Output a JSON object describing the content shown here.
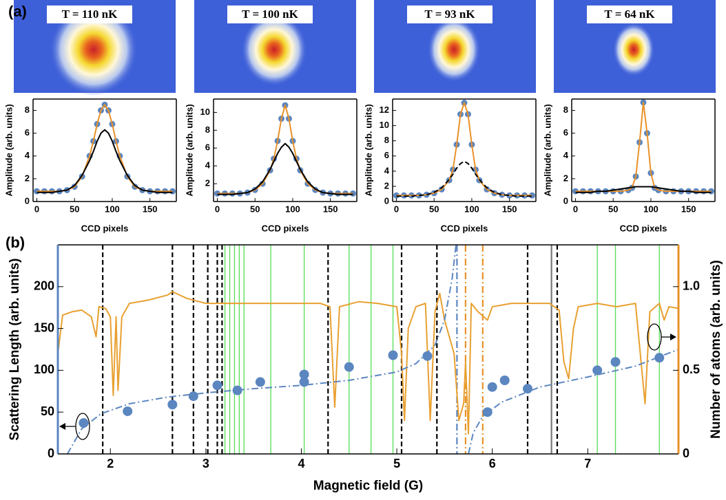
{
  "chart_data": [
    {
      "type": "line",
      "panel_label": "(a)",
      "annotation": "T = 110 nK",
      "x_label": "CCD pixels",
      "y_label": "Amplitude (arb. units)",
      "xlim": [
        -5,
        185
      ],
      "ylim": [
        0,
        9
      ],
      "xticks": [
        0,
        50,
        100,
        150
      ],
      "yticks": [
        0,
        2,
        4,
        6,
        8
      ],
      "x": [
        0,
        10,
        20,
        30,
        40,
        50,
        60,
        70,
        75,
        80,
        85,
        90,
        95,
        100,
        105,
        110,
        120,
        130,
        140,
        150,
        160,
        170,
        180
      ],
      "series": [
        {
          "color": "#5b86c0",
          "style": "points",
          "values": [
            0.9,
            0.9,
            0.9,
            0.9,
            1.0,
            1.3,
            2.2,
            4.0,
            5.3,
            6.8,
            8.0,
            8.5,
            8.0,
            6.8,
            5.3,
            4.0,
            2.2,
            1.3,
            1.0,
            0.9,
            0.9,
            0.9,
            0.9
          ]
        },
        {
          "color": "#e8912a",
          "style": "solid",
          "values": [
            0.9,
            0.9,
            0.9,
            0.9,
            1.0,
            1.3,
            2.2,
            4.0,
            5.3,
            6.8,
            8.0,
            8.5,
            8.0,
            6.8,
            5.3,
            4.0,
            2.2,
            1.3,
            1.0,
            0.9,
            0.9,
            0.9,
            0.9
          ]
        },
        {
          "color": "#000000",
          "style": "solid",
          "values": [
            0.8,
            0.8,
            0.8,
            0.9,
            1.0,
            1.4,
            2.3,
            3.6,
            4.4,
            5.3,
            6.0,
            6.3,
            6.0,
            5.3,
            4.4,
            3.6,
            2.3,
            1.4,
            1.0,
            0.9,
            0.8,
            0.8,
            0.8
          ]
        }
      ]
    },
    {
      "type": "line",
      "annotation": "T = 100 nK",
      "x_label": "CCD pixels",
      "y_label": "Amplitude (arb. units)",
      "xlim": [
        -5,
        185
      ],
      "ylim": [
        0,
        11.5
      ],
      "xticks": [
        0,
        50,
        100,
        150
      ],
      "yticks": [
        2,
        4,
        6,
        8,
        10
      ],
      "x": [
        0,
        10,
        20,
        30,
        40,
        50,
        60,
        70,
        75,
        80,
        85,
        90,
        95,
        100,
        105,
        110,
        120,
        130,
        140,
        150,
        160,
        170,
        180
      ],
      "series": [
        {
          "color": "#5b86c0",
          "style": "points",
          "values": [
            0.9,
            0.9,
            0.9,
            0.9,
            1.0,
            1.3,
            2.0,
            3.5,
            4.8,
            6.8,
            9.3,
            10.8,
            9.3,
            6.8,
            4.8,
            3.5,
            2.0,
            1.3,
            1.0,
            0.9,
            0.9,
            0.9,
            0.9
          ]
        },
        {
          "color": "#e8912a",
          "style": "solid",
          "values": [
            0.9,
            0.9,
            0.9,
            0.9,
            1.0,
            1.3,
            2.0,
            3.5,
            4.8,
            6.8,
            9.3,
            10.8,
            9.3,
            6.8,
            4.8,
            3.5,
            2.0,
            1.3,
            1.0,
            0.9,
            0.9,
            0.9,
            0.9
          ]
        },
        {
          "color": "#000000",
          "style": "solid",
          "values": [
            0.8,
            0.8,
            0.8,
            0.9,
            1.0,
            1.4,
            2.2,
            3.6,
            4.5,
            5.4,
            6.1,
            6.5,
            6.1,
            5.4,
            4.5,
            3.6,
            2.2,
            1.4,
            1.0,
            0.9,
            0.8,
            0.8,
            0.8
          ]
        }
      ]
    },
    {
      "type": "line",
      "annotation": "T = 93 nK",
      "x_label": "CCD pixels",
      "y_label": "Amplitude (arb. units)",
      "xlim": [
        -5,
        185
      ],
      "ylim": [
        0,
        13.5
      ],
      "xticks": [
        0,
        50,
        100,
        150
      ],
      "yticks": [
        0,
        2,
        4,
        6,
        8,
        10,
        12
      ],
      "x": [
        0,
        10,
        20,
        30,
        40,
        50,
        60,
        70,
        75,
        80,
        85,
        90,
        95,
        100,
        105,
        110,
        120,
        130,
        140,
        150,
        160,
        170,
        180
      ],
      "series": [
        {
          "color": "#5b86c0",
          "style": "points",
          "values": [
            0.8,
            0.8,
            0.8,
            0.8,
            0.9,
            1.1,
            1.6,
            2.8,
            4.2,
            7.5,
            11.5,
            13.0,
            11.5,
            7.5,
            4.2,
            2.8,
            1.6,
            1.1,
            0.9,
            0.8,
            0.8,
            0.8,
            0.8
          ]
        },
        {
          "color": "#e8912a",
          "style": "solid",
          "values": [
            0.8,
            0.8,
            0.8,
            0.8,
            0.9,
            1.1,
            1.6,
            2.8,
            4.2,
            7.5,
            11.5,
            13.0,
            11.5,
            7.5,
            4.2,
            2.8,
            1.6,
            1.1,
            0.9,
            0.8,
            0.8,
            0.8,
            0.8
          ]
        },
        {
          "color": "#000000",
          "style": "dashed",
          "values": [
            0.7,
            0.7,
            0.7,
            0.8,
            0.9,
            1.2,
            1.8,
            2.9,
            3.6,
            4.4,
            5.0,
            5.3,
            5.0,
            4.4,
            3.6,
            2.9,
            1.8,
            1.2,
            0.9,
            0.8,
            0.7,
            0.7,
            0.7
          ]
        }
      ]
    },
    {
      "type": "line",
      "annotation": "T = 64 nK",
      "x_label": "CCD pixels",
      "y_label": "Amplitude (arb. units)",
      "xlim": [
        -5,
        185
      ],
      "ylim": [
        0,
        9
      ],
      "xticks": [
        0,
        50,
        100,
        150
      ],
      "yticks": [
        0,
        2,
        4,
        6,
        8
      ],
      "x": [
        0,
        10,
        20,
        30,
        40,
        50,
        60,
        70,
        75,
        80,
        85,
        90,
        95,
        100,
        105,
        110,
        120,
        130,
        140,
        150,
        160,
        170,
        180
      ],
      "series": [
        {
          "color": "#5b86c0",
          "style": "points",
          "values": [
            0.9,
            0.9,
            0.9,
            0.9,
            0.9,
            0.9,
            0.9,
            1.0,
            1.2,
            2.2,
            5.2,
            8.7,
            6.0,
            2.5,
            1.2,
            1.0,
            0.9,
            0.9,
            0.9,
            0.9,
            0.9,
            0.9,
            0.9
          ]
        },
        {
          "color": "#e8912a",
          "style": "solid",
          "values": [
            0.9,
            0.9,
            0.9,
            0.9,
            0.9,
            0.9,
            0.9,
            1.0,
            1.2,
            2.2,
            5.2,
            8.7,
            6.0,
            2.5,
            1.2,
            1.0,
            0.9,
            0.9,
            0.9,
            0.9,
            0.9,
            0.9,
            0.9
          ]
        },
        {
          "color": "#000000",
          "style": "solid",
          "values": [
            0.8,
            0.8,
            0.8,
            0.9,
            0.9,
            1.0,
            1.1,
            1.2,
            1.25,
            1.3,
            1.3,
            1.3,
            1.3,
            1.3,
            1.25,
            1.2,
            1.1,
            1.0,
            0.9,
            0.9,
            0.8,
            0.8,
            0.8
          ]
        }
      ]
    },
    {
      "type": "line",
      "panel_label": "(b)",
      "x_label": "Magnetic field (G)",
      "y_label": "Scattering Length  (arb. units)",
      "y2_label": "Number of atoms (arb. units)",
      "xlim": [
        1.45,
        7.95
      ],
      "ylim": [
        0,
        250
      ],
      "y2lim": [
        0,
        1.25
      ],
      "xticks": [
        2,
        3,
        4,
        5,
        6,
        7
      ],
      "yticks": [
        0,
        50,
        100,
        150,
        200
      ],
      "y2ticks": [
        0,
        0.5,
        {
          "value": 1.0,
          "label": "1.0"
        }
      ],
      "y_axis_color": "#5b86c0",
      "y2_axis_color": "#e8912a",
      "vlines": [
        {
          "x": 1.92,
          "color": "#000000",
          "style": "dashed"
        },
        {
          "x": 2.65,
          "color": "#000000",
          "style": "dashed"
        },
        {
          "x": 2.87,
          "color": "#000000",
          "style": "dashed"
        },
        {
          "x": 3.02,
          "color": "#000000",
          "style": "dashed"
        },
        {
          "x": 3.12,
          "color": "#000000",
          "style": "dashed"
        },
        {
          "x": 3.17,
          "color": "#000000",
          "style": "dashed"
        },
        {
          "x": 4.28,
          "color": "#000000",
          "style": "dashed"
        },
        {
          "x": 5.05,
          "color": "#000000",
          "style": "dashed"
        },
        {
          "x": 5.42,
          "color": "#000000",
          "style": "dashed"
        },
        {
          "x": 6.37,
          "color": "#000000",
          "style": "dashed"
        },
        {
          "x": 6.68,
          "color": "#000000",
          "style": "dashed"
        },
        {
          "x": 3.2,
          "color": "#55dd55",
          "style": "solid"
        },
        {
          "x": 3.25,
          "color": "#55dd55",
          "style": "solid"
        },
        {
          "x": 3.3,
          "color": "#55dd55",
          "style": "solid"
        },
        {
          "x": 3.35,
          "color": "#55dd55",
          "style": "solid"
        },
        {
          "x": 3.4,
          "color": "#55dd55",
          "style": "solid"
        },
        {
          "x": 3.68,
          "color": "#55dd55",
          "style": "solid"
        },
        {
          "x": 4.03,
          "color": "#55dd55",
          "style": "solid"
        },
        {
          "x": 4.5,
          "color": "#55dd55",
          "style": "solid"
        },
        {
          "x": 4.73,
          "color": "#55dd55",
          "style": "solid"
        },
        {
          "x": 4.96,
          "color": "#55dd55",
          "style": "solid"
        },
        {
          "x": 7.1,
          "color": "#55dd55",
          "style": "solid"
        },
        {
          "x": 7.29,
          "color": "#55dd55",
          "style": "solid"
        },
        {
          "x": 7.75,
          "color": "#55dd55",
          "style": "solid"
        },
        {
          "x": 5.63,
          "color": "#5b86c0",
          "style": "dashdot"
        },
        {
          "x": 5.72,
          "color": "#e8912a",
          "style": "dashdot"
        },
        {
          "x": 5.9,
          "color": "#e8912a",
          "style": "dashdot"
        },
        {
          "x": 6.62,
          "color": "#777777",
          "style": "solid"
        }
      ],
      "series": [
        {
          "color": "#e8a030",
          "style": "solid",
          "axis": "y2",
          "x": [
            1.45,
            1.5,
            1.6,
            1.7,
            1.8,
            1.85,
            1.88,
            1.95,
            2.0,
            2.03,
            2.06,
            2.08,
            2.12,
            2.2,
            2.4,
            2.6,
            2.65,
            2.8,
            3.0,
            3.2,
            3.4,
            3.6,
            3.8,
            4.0,
            4.2,
            4.3,
            4.35,
            4.4,
            4.6,
            4.8,
            5.0,
            5.05,
            5.08,
            5.12,
            5.2,
            5.3,
            5.35,
            5.4,
            5.45,
            5.5,
            5.6,
            5.65,
            5.7,
            5.72,
            5.75,
            5.78,
            5.85,
            5.95,
            6.0,
            6.2,
            6.4,
            6.6,
            6.7,
            6.75,
            6.8,
            6.85,
            6.9,
            7.1,
            7.3,
            7.5,
            7.6,
            7.65,
            7.75,
            7.8,
            7.85,
            7.95
          ],
          "values": [
            0.6,
            0.83,
            0.85,
            0.86,
            0.82,
            0.7,
            0.88,
            0.87,
            0.82,
            0.35,
            0.82,
            0.38,
            0.82,
            0.9,
            0.92,
            0.95,
            0.97,
            0.93,
            0.9,
            0.9,
            0.9,
            0.9,
            0.9,
            0.9,
            0.9,
            0.88,
            0.28,
            0.88,
            0.91,
            0.9,
            0.88,
            0.6,
            0.2,
            0.75,
            0.88,
            0.9,
            0.2,
            0.85,
            0.96,
            0.8,
            0.6,
            0.2,
            0.3,
            0.55,
            0.12,
            0.9,
            0.85,
            0.8,
            0.88,
            0.9,
            0.9,
            0.9,
            0.86,
            0.55,
            0.45,
            0.75,
            0.88,
            0.9,
            0.88,
            0.9,
            0.3,
            0.85,
            0.9,
            0.8,
            0.88,
            0.87
          ]
        },
        {
          "color": "#5b86c0",
          "style": "dashdot",
          "x": [
            1.55,
            1.7,
            1.9,
            2.2,
            2.6,
            3.0,
            3.5,
            4.0,
            4.5,
            5.0,
            5.2,
            5.4,
            5.5,
            5.58,
            5.62,
            5.68,
            5.75,
            5.8,
            5.9,
            6.1,
            6.5,
            7.0,
            7.5,
            7.95
          ],
          "values": [
            0,
            30,
            48,
            60,
            68,
            73,
            78,
            82,
            88,
            98,
            108,
            130,
            160,
            210,
            250,
            null,
            0,
            25,
            45,
            62,
            80,
            92,
            105,
            125
          ]
        },
        {
          "color": "#5b86c0",
          "style": "points",
          "x": [
            1.72,
            2.18,
            2.65,
            2.87,
            3.12,
            3.33,
            3.57,
            4.03,
            4.03,
            4.5,
            4.96,
            5.32,
            5.95,
            6.0,
            6.13,
            6.37,
            7.1,
            7.29,
            7.75
          ],
          "values": [
            37,
            51,
            59,
            69,
            82,
            76,
            86,
            95,
            86,
            104,
            118,
            117,
            50,
            80,
            88,
            78,
            100,
            110,
            115
          ]
        }
      ]
    }
  ]
}
